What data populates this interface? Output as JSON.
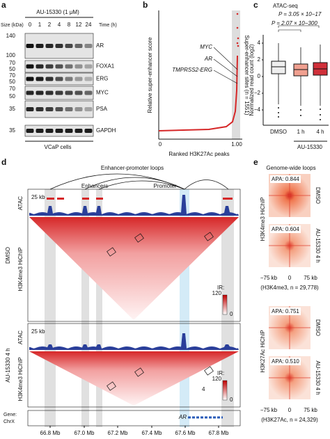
{
  "panel_a": {
    "label": "a",
    "treatment": "AU-15330 (1 μM)",
    "size_label": "Size (kDa)",
    "time_label": "Time (h)",
    "time_points": [
      "0",
      "1",
      "2",
      "4",
      "8",
      "12",
      "24"
    ],
    "blots": [
      {
        "name": "AR",
        "sizes": [
          "140",
          "100"
        ]
      },
      {
        "name": "FOXA1",
        "sizes": [
          "70",
          "50"
        ]
      },
      {
        "name": "ERG",
        "sizes": [
          "70",
          "50"
        ]
      },
      {
        "name": "MYC",
        "sizes": [
          "70",
          "50"
        ]
      },
      {
        "name": "PSA",
        "sizes": [
          "35"
        ]
      },
      {
        "name": "GAPDH",
        "sizes": [
          "35"
        ]
      }
    ],
    "footer": "VCaP cells"
  },
  "panel_b": {
    "label": "b",
    "y_label": "Relative super-enhancer score",
    "x_label": "Ranked H3K27Ac peaks",
    "x_ticks": [
      "0",
      "1.00"
    ],
    "genes": [
      "MYC",
      "AR",
      "TMPRSS2-ERG"
    ],
    "annotation": "Super-enhancer sites (n = 1551)"
  },
  "panel_c": {
    "label": "c",
    "title": "ATAC-seq",
    "p_values": [
      "P = 3.05 × 10−17",
      "P = 2.07 × 10−300"
    ],
    "y_label": "Normalized read count (log2)",
    "y_ticks": [
      "4",
      "2",
      "0",
      "−2",
      "−4"
    ],
    "groups": [
      "DMSO",
      "1 h",
      "4 h"
    ],
    "treatment": "AU-15330"
  },
  "panel_d": {
    "label": "d",
    "title": "Enhancer-promoter loops",
    "enhancers": "Enhancers",
    "promoter": "Promoter",
    "conditions": [
      {
        "name": "DMSO",
        "track": "ATAC",
        "scale": "25 kb",
        "hichip": "H3K4me3 HiChIP",
        "ir_label": "IR:",
        "ir_max": "120",
        "ir_min": "0"
      },
      {
        "name": "AU-15330 4 h",
        "track": "ATAC",
        "scale": "25 kb",
        "hichip": "H3K4me3 HiChIP",
        "ir_label": "IR:",
        "ir_max": "120",
        "ir_min": "0"
      }
    ],
    "extra": "4",
    "gene_label": "Gene:",
    "chrom": "ChrX",
    "gene": "AR",
    "x_ticks": [
      "66.8 Mb",
      "67.0 Mb",
      "67.2 Mb",
      "67.4 Mb",
      "67.6 Mb",
      "67.8 Mb"
    ]
  },
  "panel_e": {
    "label": "e",
    "title": "Genome-wide loops",
    "groups": [
      {
        "hichip": "H3K4me3 HiChIP",
        "maps": [
          {
            "apa": "APA: 0.844",
            "condition": "DMSO"
          },
          {
            "apa": "APA: 0.604",
            "condition": "AU-15330 4 h"
          }
        ],
        "ticks": [
          "−75 kb",
          "0",
          "75 kb"
        ],
        "footnote": "(H3K4me3, n = 29,778)"
      },
      {
        "hichip": "H3K27Ac HiChIP",
        "maps": [
          {
            "apa": "APA: 0.751",
            "condition": "DMSO"
          },
          {
            "apa": "APA: 0.510",
            "condition": "AU-15330 4 h"
          }
        ],
        "ticks": [
          "−75 kb",
          "0",
          "75 kb"
        ],
        "footnote": "(H3K27Ac, n = 24,329)"
      }
    ]
  }
}
